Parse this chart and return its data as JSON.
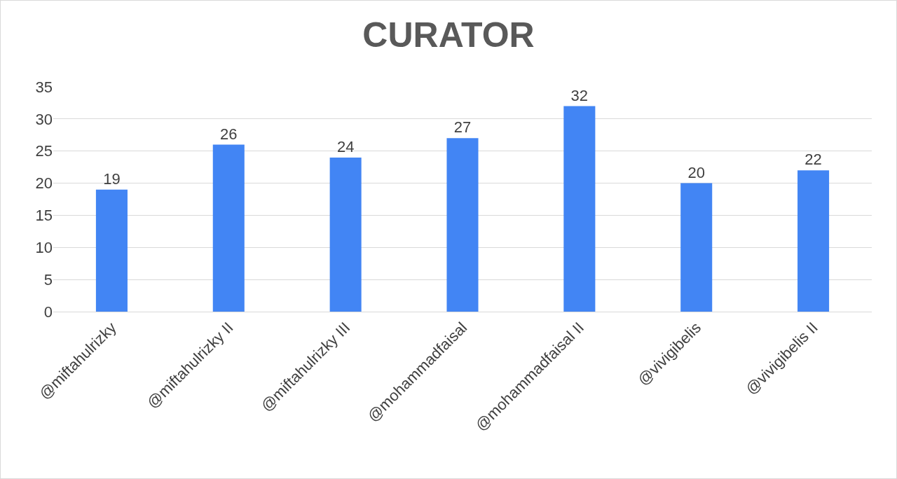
{
  "chart_data": {
    "type": "bar",
    "title": "CURATOR",
    "categories": [
      "@miftahulrizky",
      "@miftahulrizky II",
      "@miftahulrizky III",
      "@mohammadfaisal",
      "@mohammadfaisal II",
      "@vivigibelis",
      "@vivigibelis II"
    ],
    "values": [
      19,
      26,
      24,
      27,
      32,
      20,
      22
    ],
    "color": "#4285f4",
    "ylim": [
      0,
      35
    ],
    "yticks": [
      0,
      5,
      10,
      15,
      20,
      25,
      30,
      35
    ],
    "grid": "y",
    "data_labels": true
  }
}
